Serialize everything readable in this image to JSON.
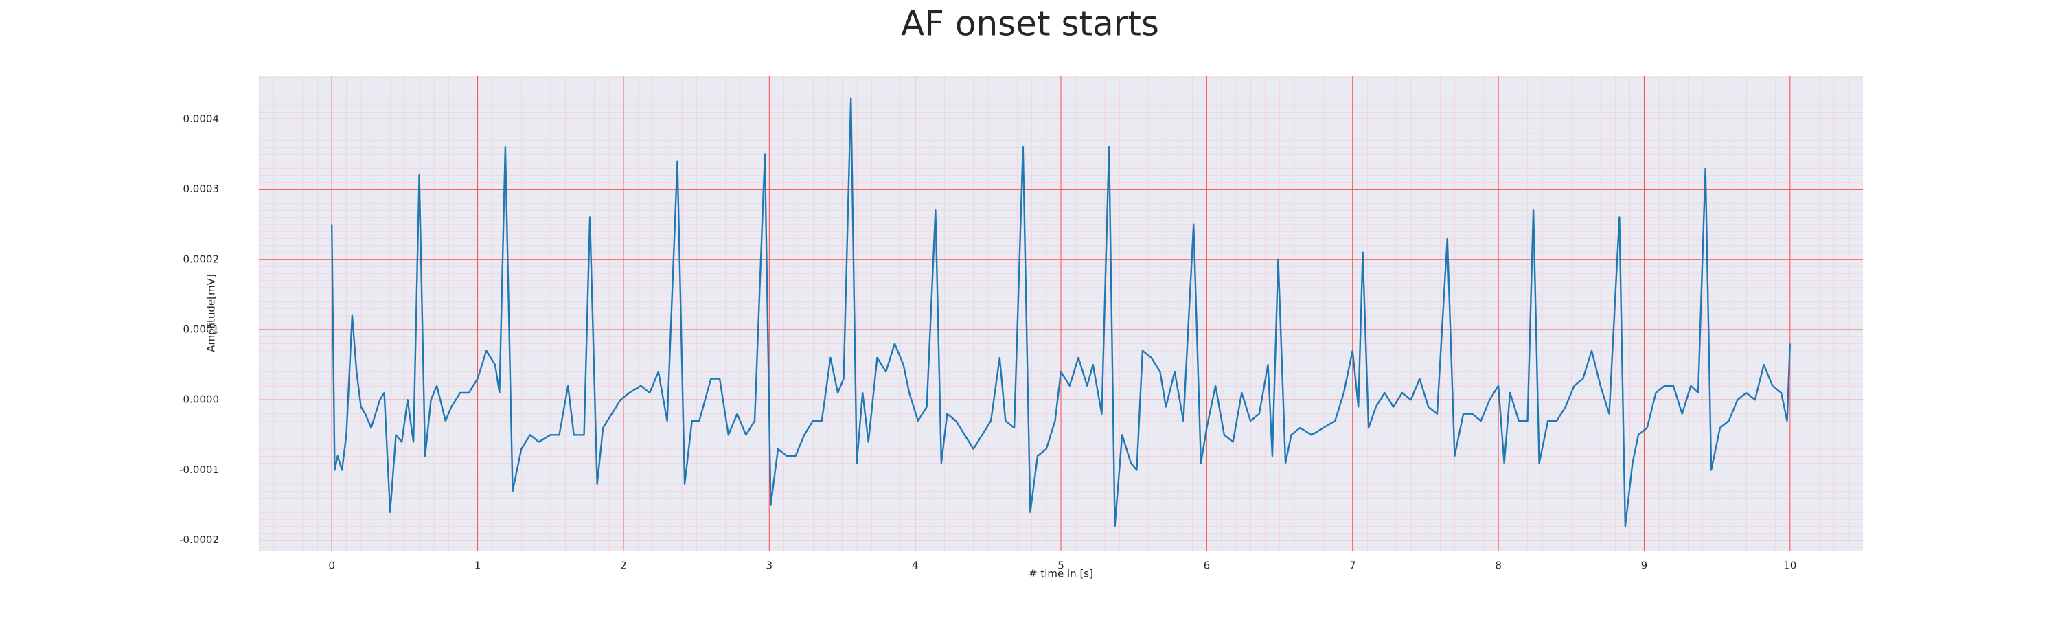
{
  "chart_data": {
    "type": "line",
    "title": "AF onset starts",
    "x_label": "# time in [s]",
    "y_label": "Amplitude[mV]",
    "xlim": [
      -0.5,
      10.5
    ],
    "ylim": [
      -0.000215,
      0.000462
    ],
    "xticks": [
      0,
      1,
      2,
      3,
      4,
      5,
      6,
      7,
      8,
      9,
      10
    ],
    "yticks": [
      -0.0002,
      -0.0001,
      {
        "value": 0,
        "label": "0.0000"
      },
      0.0001,
      0.0002,
      0.0003,
      0.0004
    ],
    "grid": true,
    "minor_grid": true,
    "background": "#eaeaf2",
    "grid_color": "#ff4d4d",
    "minor_grid_color": "#f7c6d3",
    "series": [
      {
        "color": "#1f77b4",
        "x": [
          0,
          0.02,
          0.04,
          0.07,
          0.1,
          0.14,
          0.17,
          0.2,
          0.23,
          0.27,
          0.3,
          0.33,
          0.36,
          0.4,
          0.44,
          0.48,
          0.52,
          0.56,
          0.6,
          0.64,
          0.68,
          0.72,
          0.78,
          0.82,
          0.88,
          0.94,
          1.0,
          1.06,
          1.12,
          1.15,
          1.19,
          1.24,
          1.3,
          1.36,
          1.42,
          1.5,
          1.56,
          1.62,
          1.66,
          1.73,
          1.77,
          1.82,
          1.86,
          1.92,
          1.98,
          2.04,
          2.12,
          2.18,
          2.24,
          2.3,
          2.37,
          2.42,
          2.47,
          2.52,
          2.6,
          2.66,
          2.72,
          2.78,
          2.84,
          2.9,
          2.97,
          3.01,
          3.06,
          3.12,
          3.18,
          3.24,
          3.3,
          3.36,
          3.42,
          3.47,
          3.51,
          3.56,
          3.6,
          3.64,
          3.68,
          3.74,
          3.8,
          3.86,
          3.92,
          3.96,
          4.02,
          4.08,
          4.14,
          4.18,
          4.22,
          4.28,
          4.34,
          4.4,
          4.46,
          4.52,
          4.58,
          4.62,
          4.68,
          4.74,
          4.79,
          4.84,
          4.9,
          4.96,
          5.0,
          5.06,
          5.12,
          5.18,
          5.22,
          5.28,
          5.33,
          5.37,
          5.42,
          5.48,
          5.52,
          5.56,
          5.62,
          5.68,
          5.72,
          5.78,
          5.84,
          5.91,
          5.96,
          6.0,
          6.06,
          6.12,
          6.18,
          6.24,
          6.3,
          6.36,
          6.42,
          6.45,
          6.49,
          6.54,
          6.58,
          6.64,
          6.72,
          6.8,
          6.88,
          6.94,
          7.0,
          7.04,
          7.07,
          7.11,
          7.16,
          7.22,
          7.28,
          7.34,
          7.4,
          7.46,
          7.52,
          7.58,
          7.65,
          7.7,
          7.76,
          7.82,
          7.88,
          7.94,
          8.0,
          8.04,
          8.08,
          8.14,
          8.2,
          8.24,
          8.28,
          8.34,
          8.4,
          8.46,
          8.52,
          8.58,
          8.64,
          8.7,
          8.76,
          8.83,
          8.87,
          8.92,
          8.96,
          9.02,
          9.08,
          9.14,
          9.2,
          9.26,
          9.32,
          9.37,
          9.42,
          9.46,
          9.52,
          9.58,
          9.64,
          9.7,
          9.76,
          9.82,
          9.88,
          9.94,
          9.98,
          10.0
        ],
        "values": [
          0.00025,
          -0.0001,
          -8e-05,
          -0.0001,
          -5e-05,
          0.00012,
          4e-05,
          -1e-05,
          -2e-05,
          -4e-05,
          -2e-05,
          0,
          1e-05,
          -0.00016,
          -5e-05,
          -6e-05,
          0,
          -6e-05,
          0.00032,
          -8e-05,
          0,
          2e-05,
          -3e-05,
          -1e-05,
          1e-05,
          1e-05,
          3e-05,
          7e-05,
          5e-05,
          1e-05,
          0.00036,
          -0.00013,
          -7e-05,
          -5e-05,
          -6e-05,
          -5e-05,
          -5e-05,
          2e-05,
          -5e-05,
          -5e-05,
          0.00026,
          -0.00012,
          -4e-05,
          -2e-05,
          0,
          1e-05,
          2e-05,
          1e-05,
          4e-05,
          -3e-05,
          0.00034,
          -0.00012,
          -3e-05,
          -3e-05,
          3e-05,
          3e-05,
          -5e-05,
          -2e-05,
          -5e-05,
          -3e-05,
          0.00035,
          -0.00015,
          -7e-05,
          -8e-05,
          -8e-05,
          -5e-05,
          -3e-05,
          -3e-05,
          6e-05,
          1e-05,
          3e-05,
          0.00043,
          -9e-05,
          1e-05,
          -6e-05,
          6e-05,
          4e-05,
          8e-05,
          5e-05,
          1e-05,
          -3e-05,
          -1e-05,
          0.00027,
          -9e-05,
          -2e-05,
          -3e-05,
          -5e-05,
          -7e-05,
          -5e-05,
          -3e-05,
          6e-05,
          -3e-05,
          -4e-05,
          0.00036,
          -0.00016,
          -8e-05,
          -7e-05,
          -3e-05,
          4e-05,
          2e-05,
          6e-05,
          2e-05,
          5e-05,
          -2e-05,
          0.00036,
          -0.00018,
          -5e-05,
          -9e-05,
          -0.0001,
          7e-05,
          6e-05,
          4e-05,
          -1e-05,
          4e-05,
          -3e-05,
          0.00025,
          -9e-05,
          -4e-05,
          2e-05,
          -5e-05,
          -6e-05,
          1e-05,
          -3e-05,
          -2e-05,
          5e-05,
          -8e-05,
          0.0002,
          -9e-05,
          -5e-05,
          -4e-05,
          -5e-05,
          -4e-05,
          -3e-05,
          1e-05,
          7e-05,
          -1e-05,
          0.00021,
          -4e-05,
          -1e-05,
          1e-05,
          -1e-05,
          1e-05,
          0,
          3e-05,
          -1e-05,
          -2e-05,
          0.00023,
          -8e-05,
          -2e-05,
          -2e-05,
          -3e-05,
          0,
          2e-05,
          -9e-05,
          1e-05,
          -3e-05,
          -3e-05,
          0.00027,
          -9e-05,
          -3e-05,
          -3e-05,
          -1e-05,
          2e-05,
          3e-05,
          7e-05,
          2e-05,
          -2e-05,
          0.00026,
          -0.00018,
          -9e-05,
          -5e-05,
          -4e-05,
          1e-05,
          2e-05,
          2e-05,
          -2e-05,
          2e-05,
          1e-05,
          0.00033,
          -0.0001,
          -4e-05,
          -3e-05,
          0,
          1e-05,
          0,
          5e-05,
          2e-05,
          1e-05,
          -3e-05,
          8e-05
        ]
      }
    ]
  }
}
